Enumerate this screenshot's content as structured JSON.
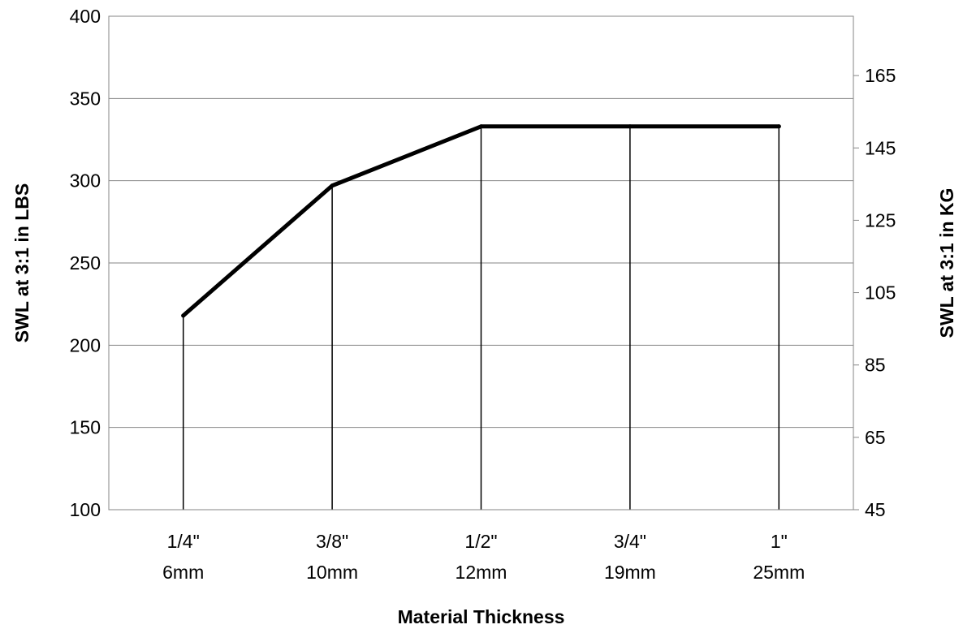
{
  "chart_data": {
    "type": "line",
    "title": "",
    "xlabel": "Material Thickness",
    "ylabel": "SWL at 3:1 in LBS",
    "y2label": "SWL at 3:1 in KG",
    "categories": [
      [
        "1/4\"",
        "6mm"
      ],
      [
        "3/8\"",
        "10mm"
      ],
      [
        "1/2\"",
        "12mm"
      ],
      [
        "3/4\"",
        "19mm"
      ],
      [
        "1\"",
        "25mm"
      ]
    ],
    "series": [
      {
        "values": [
          218,
          297,
          333,
          333,
          333
        ]
      }
    ],
    "ylim": [
      100,
      400
    ],
    "yticks": [
      100,
      150,
      200,
      250,
      300,
      350,
      400
    ],
    "y2lim": [
      45,
      181.4
    ],
    "y2ticks": [
      45,
      65,
      85,
      105,
      125,
      145,
      165
    ],
    "drop_lines": true,
    "grid": "horizontal",
    "legend": "none",
    "colors": {
      "line": "#000000",
      "grid": "#868686",
      "axis": "#868686",
      "drop_line": "#000000"
    }
  }
}
